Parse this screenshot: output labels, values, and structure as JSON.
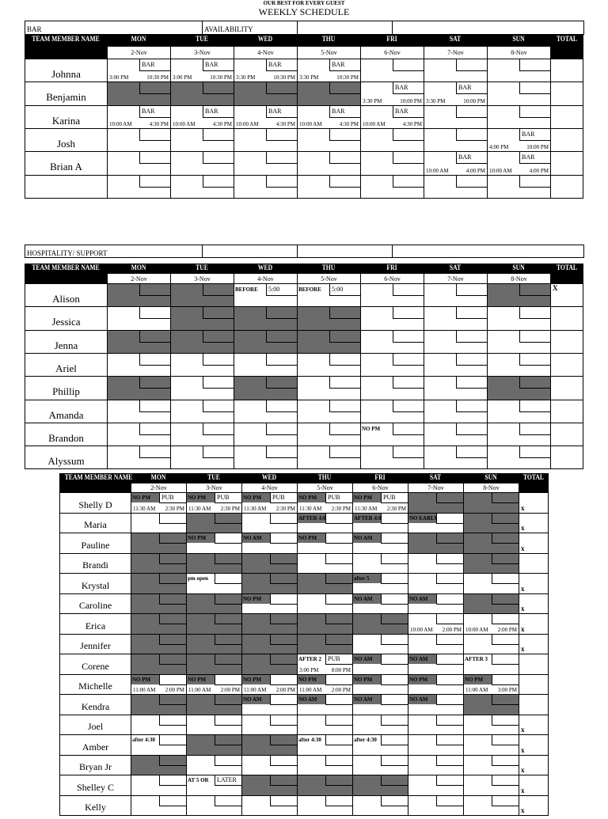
{
  "header": {
    "tagline": "OUR BEST FOR EVERY GUEST",
    "title": "WEEKLY SCHEDULE"
  },
  "colors": {
    "unavailable": "#6b6b6b",
    "header_bg": "#000000"
  },
  "sections": [
    {
      "info": [
        "BAR",
        "AVAILABILITY",
        "",
        ""
      ],
      "name_header": "TEAM MEMBER NAME",
      "total_header": "TOTAL",
      "days": [
        "MON",
        "TUE",
        "WED",
        "THU",
        "FRI",
        "SAT",
        "SUN"
      ],
      "dates": [
        "2-Nov",
        "3-Nov",
        "4-Nov",
        "5-Nov",
        "6-Nov",
        "7-Nov",
        "8-Nov"
      ],
      "rows": [
        {
          "name": "Johnna",
          "total": "",
          "cells": [
            {
              "box": "BAR",
              "start": "3:00 PM",
              "end": "10:30 PM"
            },
            {
              "box": "BAR",
              "start": "3:00 PM",
              "end": "10:30 PM"
            },
            {
              "box": "BAR",
              "start": "3:30 PM",
              "end": "10:30 PM"
            },
            {
              "box": "BAR",
              "start": "3:30 PM",
              "end": "10:30 PM"
            },
            {},
            {},
            {}
          ]
        },
        {
          "name": "Benjamin",
          "total": "",
          "cells": [
            {
              "shaded": true
            },
            {
              "shaded": true
            },
            {
              "shaded": true
            },
            {
              "shaded": true
            },
            {
              "box": "BAR",
              "start": "3:30 PM",
              "end": "10:00 PM"
            },
            {
              "box": "BAR",
              "start": "3:30 PM",
              "end": "10:00 PM"
            },
            {}
          ]
        },
        {
          "name": "Karina",
          "total": "",
          "cells": [
            {
              "box": "BAR",
              "start": "10:00 AM",
              "end": "4:30 PM"
            },
            {
              "box": "BAR",
              "start": "10:00 AM",
              "end": "4:30 PM"
            },
            {
              "box": "BAR",
              "start": "10:00 AM",
              "end": "4:30 PM"
            },
            {
              "box": "BAR",
              "start": "10:00 AM",
              "end": "4:30 PM"
            },
            {
              "box": "BAR",
              "start": "10:00 AM",
              "end": "4:30 PM"
            },
            {},
            {}
          ]
        },
        {
          "name": "Josh",
          "total": "",
          "cells": [
            {},
            {},
            {},
            {},
            {},
            {},
            {
              "box": "BAR",
              "start": "4:00 PM",
              "end": "10:00 PM"
            }
          ]
        },
        {
          "name": "Brian A",
          "total": "",
          "cells": [
            {},
            {},
            {},
            {},
            {},
            {
              "box": "BAR",
              "start": "10:00 AM",
              "end": "4:00 PM"
            },
            {
              "box": "BAR",
              "start": "10:00 AM",
              "end": "4:00 PM"
            }
          ]
        },
        {
          "name": "",
          "total": "",
          "cells": [
            {},
            {},
            {},
            {},
            {},
            {},
            {}
          ]
        }
      ]
    },
    {
      "info": [
        "HOSPITALITY/ SUPPORT",
        "",
        "",
        ""
      ],
      "name_header": "TEAM MEMBER NAME",
      "total_header": "TOTAL",
      "days": [
        "MON",
        "TUE",
        "WED",
        "THU",
        "FRI",
        "SAT",
        "SUN"
      ],
      "dates": [
        "2-Nov",
        "3-Nov",
        "4-Nov",
        "5-Nov",
        "6-Nov",
        "7-Nov",
        "8-Nov"
      ],
      "rows": [
        {
          "name": "Alison",
          "total": "X",
          "cells": [
            {
              "shaded": true
            },
            {
              "shaded": true
            },
            {
              "note": "BEFORE",
              "box": "5:00"
            },
            {
              "note": "BEFORE",
              "box": "5:00"
            },
            {},
            {},
            {
              "shaded": true
            }
          ]
        },
        {
          "name": "Jessica",
          "total": "",
          "cells": [
            {},
            {
              "shaded": true
            },
            {
              "shaded": true
            },
            {
              "shaded": true
            },
            {},
            {},
            {}
          ]
        },
        {
          "name": "Jenna",
          "total": "",
          "cells": [
            {
              "shaded": true
            },
            {
              "shaded": true
            },
            {
              "shaded": true
            },
            {
              "shaded": true
            },
            {},
            {},
            {}
          ]
        },
        {
          "name": "Ariel",
          "total": "",
          "cells": [
            {},
            {},
            {},
            {},
            {},
            {},
            {}
          ]
        },
        {
          "name": "Phillip",
          "total": "",
          "cells": [
            {
              "shaded": true
            },
            {},
            {
              "shaded": true
            },
            {},
            {},
            {},
            {
              "shaded": true
            }
          ]
        },
        {
          "name": "Amanda",
          "total": "",
          "cells": [
            {},
            {},
            {},
            {},
            {},
            {},
            {}
          ]
        },
        {
          "name": "Brandon",
          "total": "",
          "cells": [
            {},
            {},
            {},
            {},
            {
              "note": "NO PM"
            },
            {},
            {}
          ]
        },
        {
          "name": "Alyssum",
          "total": "",
          "cells": [
            {},
            {},
            {},
            {},
            {},
            {},
            {}
          ]
        }
      ]
    },
    {
      "info": null,
      "name_header": "TEAM MEMBER NAME",
      "total_header": "TOTAL",
      "days": [
        "MON",
        "TUE",
        "WED",
        "THU",
        "FRI",
        "SAT",
        "SUN"
      ],
      "dates": [
        "2-Nov",
        "3-Nov",
        "4-Nov",
        "5-Nov",
        "6-Nov",
        "7-Nov",
        "8-Nov"
      ],
      "rows": [
        {
          "name": "Shelly D",
          "total": "x",
          "cells": [
            {
              "note": "NO PM",
              "note_shaded": true,
              "box": "PUB",
              "start": "11:30 AM",
              "end": "2:30 PM"
            },
            {
              "note": "NO PM",
              "note_shaded": true,
              "box": "PUB",
              "start": "11:30 AM",
              "end": "2:30 PM"
            },
            {
              "note": "NO PM",
              "note_shaded": true,
              "box": "PUB",
              "start": "11:30 AM",
              "end": "2:30 PM"
            },
            {
              "note": "NO PM",
              "note_shaded": true,
              "box": "PUB",
              "start": "11:30 AM",
              "end": "2:30 PM"
            },
            {
              "note": "NO PM",
              "note_shaded": true,
              "box": "PUB",
              "start": "11:30 AM",
              "end": "2:30 PM"
            },
            {
              "shaded": true
            },
            {
              "shaded": true
            }
          ]
        },
        {
          "name": "Maria",
          "total": "x",
          "cells": [
            {},
            {
              "shaded": true
            },
            {},
            {
              "note": "AFTER 4:00",
              "note_shaded": true
            },
            {
              "note": "AFTER 4:00",
              "note_shaded": true
            },
            {
              "note": "NO EARLY",
              "note_shaded": true
            },
            {
              "shaded": true
            }
          ]
        },
        {
          "name": "Pauline",
          "total": "x",
          "cells": [
            {
              "shaded": true
            },
            {
              "note": "NO PM",
              "note_shaded": true
            },
            {
              "note": "NO AM",
              "note_shaded": true
            },
            {
              "note": "NO PM",
              "note_shaded": true
            },
            {
              "note": "NO AM",
              "note_shaded": true
            },
            {
              "shaded": true
            },
            {
              "shaded": true
            }
          ]
        },
        {
          "name": "Brandi",
          "total": "",
          "cells": [
            {
              "shaded": true
            },
            {
              "shaded": true
            },
            {
              "shaded": true
            },
            {},
            {},
            {},
            {
              "shaded": true
            }
          ]
        },
        {
          "name": "Krystal",
          "total": "x",
          "cells": [
            {
              "shaded": true
            },
            {
              "note": "pm open"
            },
            {
              "shaded": true
            },
            {
              "shaded": true
            },
            {
              "note": "after 5",
              "note_shaded": true
            },
            {},
            {}
          ]
        },
        {
          "name": "Caroline",
          "total": "x",
          "cells": [
            {
              "shaded": true
            },
            {
              "shaded": true
            },
            {
              "note": "NO PM",
              "note_shaded": true
            },
            {},
            {
              "note": "NO AM",
              "note_shaded": true
            },
            {
              "note": "NO AM",
              "note_shaded": true
            },
            {
              "shaded": true
            }
          ]
        },
        {
          "name": "Erica",
          "total": "x",
          "cells": [
            {
              "shaded": true
            },
            {
              "shaded": true
            },
            {
              "shaded": true
            },
            {
              "shaded": true
            },
            {
              "shaded": true
            },
            {
              "start": "10:00 AM",
              "end": "2:00 PM"
            },
            {
              "start": "10:00 AM",
              "end": "2:00 PM"
            }
          ]
        },
        {
          "name": "Jennifer",
          "total": "x",
          "cells": [
            {
              "shaded": true
            },
            {
              "shaded": true
            },
            {
              "shaded": true
            },
            {
              "shaded": true
            },
            {},
            {},
            {}
          ]
        },
        {
          "name": "Corene",
          "total": "",
          "cells": [
            {
              "shaded": true
            },
            {
              "shaded": true
            },
            {
              "shaded": true
            },
            {
              "note": "AFTER 2",
              "box": "PUB",
              "start": "3:00 PM",
              "end": "8:00 PM"
            },
            {
              "note": "NO AM",
              "note_shaded": true
            },
            {
              "note": "NO AM",
              "note_shaded": true
            },
            {
              "note": "AFTER 3"
            }
          ]
        },
        {
          "name": "Michelle",
          "total": "",
          "cells": [
            {
              "note": "NO PM",
              "note_shaded": true,
              "start": "11:00 AM",
              "end": "2:00 PM"
            },
            {
              "note": "NO PM",
              "note_shaded": true,
              "start": "11:00 AM",
              "end": "2:00 PM"
            },
            {
              "note": "NO PM",
              "note_shaded": true,
              "start": "11:00 AM",
              "end": "2:00 PM"
            },
            {
              "note": "NO PM",
              "note_shaded": true,
              "start": "11:00 AM",
              "end": "2:00 PM"
            },
            {
              "note": "NO PM",
              "note_shaded": true
            },
            {
              "note": "NO PM",
              "note_shaded": true
            },
            {
              "note": "NO PM",
              "note_shaded": true,
              "start": "11:00 AM",
              "end": "3:00 PM"
            }
          ]
        },
        {
          "name": "Kendra",
          "total": "",
          "cells": [
            {
              "shaded": true
            },
            {
              "shaded": true
            },
            {
              "note": "NO AM",
              "note_shaded": true
            },
            {
              "note": "NO AM",
              "note_shaded": true
            },
            {
              "note": "NO AM",
              "note_shaded": true
            },
            {
              "note": "NO AM",
              "note_shaded": true
            },
            {
              "shaded": true
            }
          ]
        },
        {
          "name": "Joel",
          "total": "x",
          "cells": [
            {},
            {},
            {},
            {},
            {},
            {},
            {}
          ]
        },
        {
          "name": "Amber",
          "total": "x",
          "cells": [
            {
              "note": "after 4:30"
            },
            {
              "shaded": true
            },
            {
              "shaded": true
            },
            {
              "note": "after 4:30"
            },
            {
              "note": "after 4:30"
            },
            {},
            {}
          ]
        },
        {
          "name": "Bryan Jr",
          "total": "x",
          "cells": [
            {
              "shaded": true
            },
            {},
            {},
            {},
            {},
            {},
            {}
          ]
        },
        {
          "name": "Shelley C",
          "total": "x",
          "cells": [
            {},
            {
              "note": "AT 5 OR",
              "box": "LATER"
            },
            {
              "shaded": true
            },
            {
              "shaded": true
            },
            {
              "shaded": true
            },
            {},
            {}
          ]
        },
        {
          "name": "Kelly",
          "total": "x",
          "cells": [
            {},
            {},
            {},
            {},
            {},
            {},
            {}
          ]
        }
      ]
    }
  ]
}
